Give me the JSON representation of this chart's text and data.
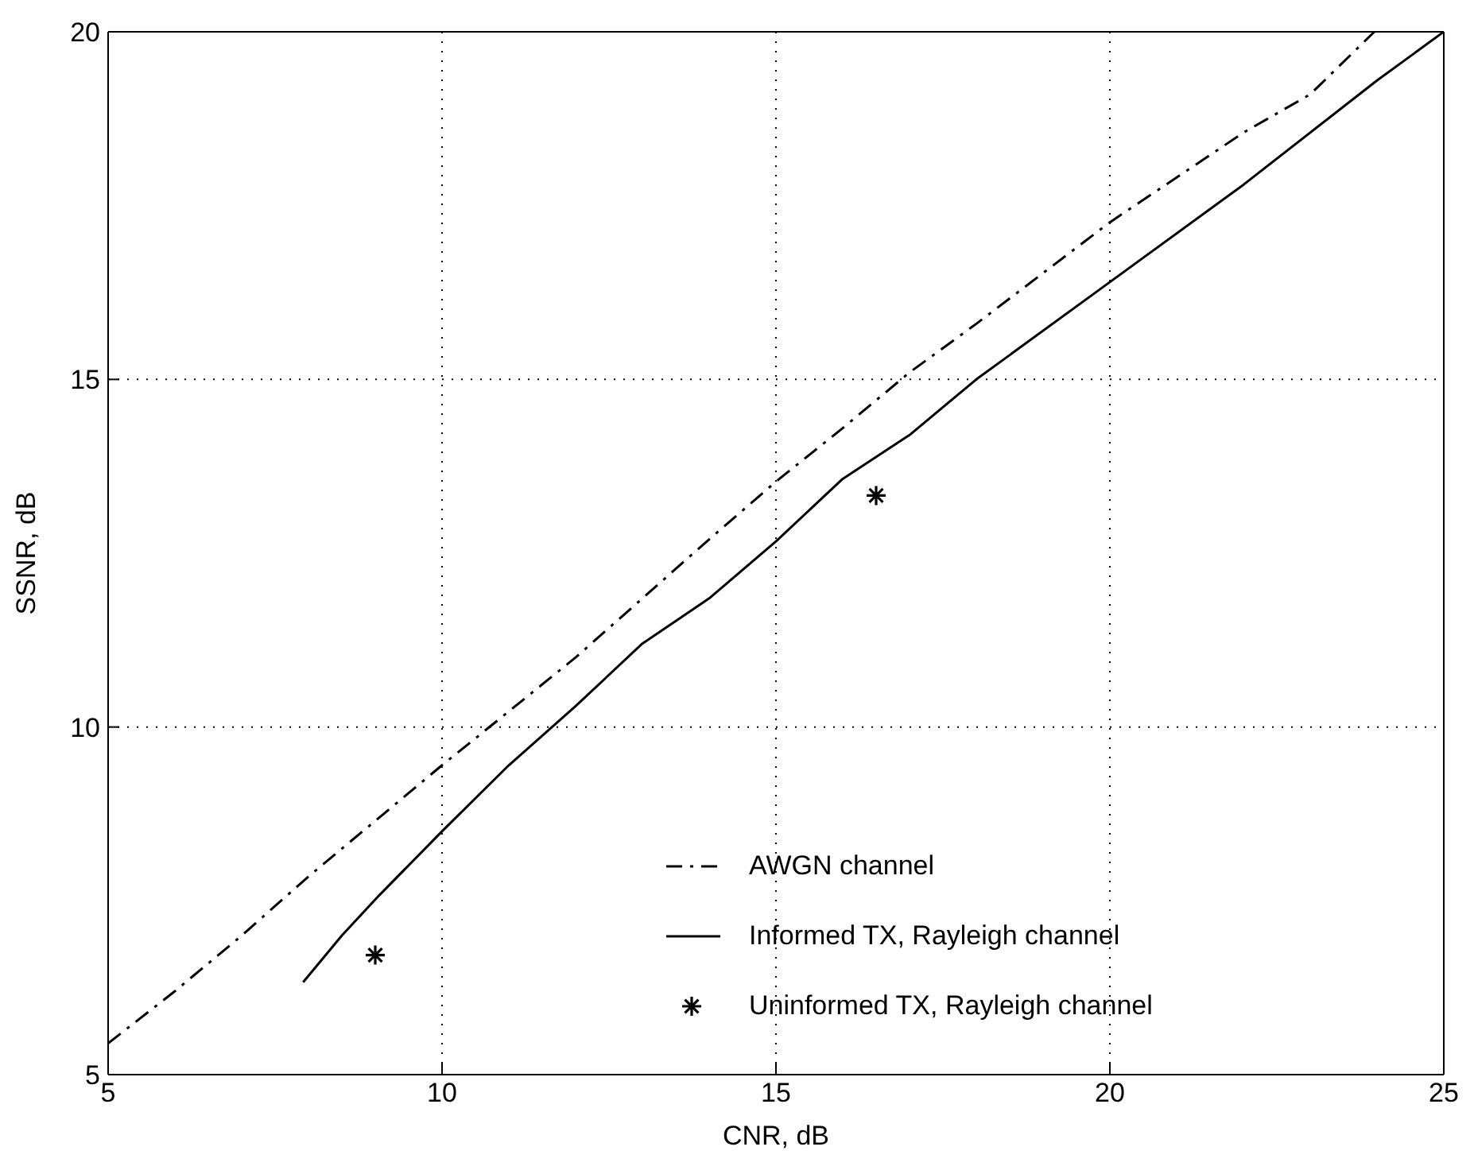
{
  "chart_data": {
    "type": "line",
    "xlabel": "CNR, dB",
    "ylabel": "SSNR, dB",
    "xlim": [
      5,
      25
    ],
    "xticks": [
      5,
      10,
      15,
      20,
      25
    ],
    "ylim": [
      5,
      20
    ],
    "yticks": [
      5,
      10,
      15,
      20
    ],
    "grid": true,
    "legend": "bottom right",
    "series": [
      {
        "name": "AWGN channel",
        "type": "line",
        "color": "#000000",
        "line_style": "dashed",
        "marker": "none",
        "x": [
          5,
          6,
          7,
          8,
          9,
          10,
          12,
          14,
          15,
          16,
          17,
          18,
          20,
          22,
          23,
          23.96
        ],
        "values": [
          5.45,
          6.2,
          7.0,
          7.85,
          8.65,
          9.45,
          11.0,
          12.7,
          13.53,
          14.3,
          15.1,
          15.8,
          17.26,
          18.55,
          19.1,
          20
        ]
      },
      {
        "name": "Informed TX, Rayleigh channel",
        "type": "line",
        "color": "#000000",
        "line_style": "solid",
        "marker": "none",
        "x": [
          7.92,
          8.5,
          9.06,
          10,
          11,
          12,
          13,
          14,
          15,
          16,
          17,
          18,
          20,
          22,
          24,
          25
        ],
        "values": [
          6.33,
          7.0,
          7.58,
          8.5,
          9.45,
          10.3,
          11.2,
          11.85,
          12.67,
          13.57,
          14.2,
          15.0,
          16.4,
          17.8,
          19.3,
          20
        ]
      },
      {
        "name": "Uninformed TX, Rayleigh channel",
        "type": "scatter",
        "color": "#000000",
        "marker": "cross",
        "x": [
          9.0,
          16.5
        ],
        "values": [
          6.72,
          13.33
        ]
      }
    ]
  }
}
